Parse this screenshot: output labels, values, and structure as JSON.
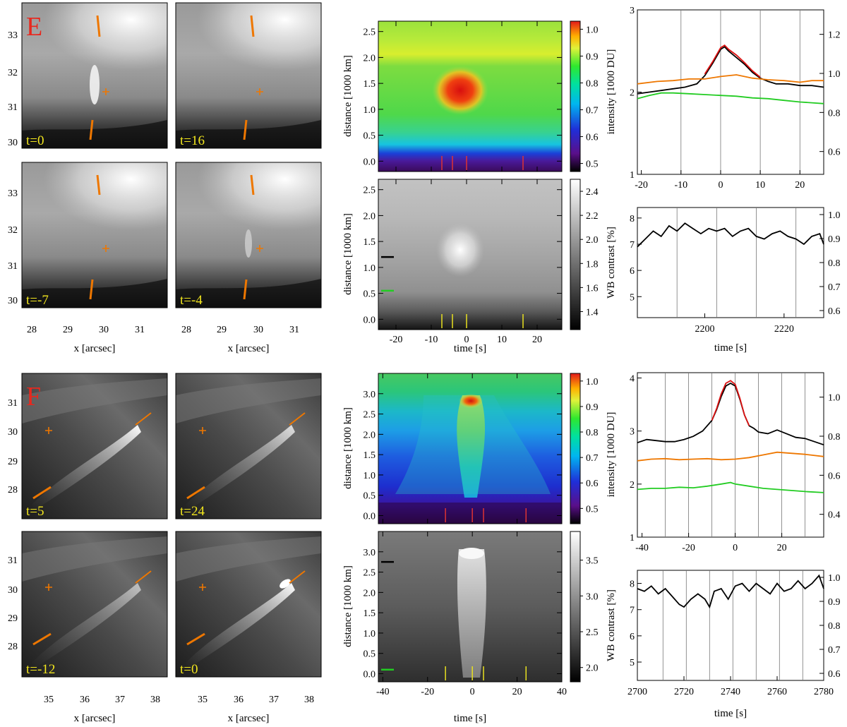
{
  "figure": {
    "sections": [
      {
        "label": "E",
        "label_color": "#e8281e",
        "image_panels": [
          {
            "time_label": "t=0"
          },
          {
            "time_label": "t=16"
          },
          {
            "time_label": "t=-7"
          },
          {
            "time_label": "t=-4"
          }
        ],
        "image_y_ticks": [
          "30",
          "31",
          "32",
          "33"
        ],
        "image_x_ticks": [
          "28",
          "29",
          "30",
          "31"
        ],
        "image_xlabel": "x [arcsec]",
        "map_ylabel": "distance [1000 km]",
        "map_y_ticks": [
          "0.0",
          "0.5",
          "1.0",
          "1.5",
          "2.0",
          "2.5"
        ],
        "map_xlabel": "time [s]",
        "map_x_ticks": [
          "-20",
          "-10",
          "0",
          "10",
          "20"
        ],
        "color_colorbar_ticks": [
          "0.5",
          "0.6",
          "0.7",
          "0.8",
          "0.9",
          "1.0"
        ],
        "gray_colorbar_ticks": [
          "1.4",
          "1.6",
          "1.8",
          "2.0",
          "2.2",
          "2.4"
        ],
        "intensity_ylabel": "intensity [1000 DU]",
        "intensity_left_ticks": [
          "1",
          "2",
          "3"
        ],
        "intensity_right_ticks": [
          "0.6",
          "0.8",
          "1.0",
          "1.2"
        ],
        "intensity_top_ticks": [
          "-20",
          "-10",
          "0",
          "10",
          "20"
        ],
        "contrast_ylabel": "WB contrast [%]",
        "contrast_left_ticks": [
          "5",
          "6",
          "7",
          "8"
        ],
        "contrast_right_ticks": [
          "0.6",
          "0.7",
          "0.8",
          "0.9",
          "1.0"
        ],
        "contrast_xlabel": "time [s]",
        "contrast_x_ticks": [
          "2200",
          "2220"
        ]
      },
      {
        "label": "F",
        "label_color": "#e8281e",
        "image_panels": [
          {
            "time_label": "t=5"
          },
          {
            "time_label": "t=24"
          },
          {
            "time_label": "t=-12"
          },
          {
            "time_label": "t=0"
          }
        ],
        "image_y_ticks": [
          "28",
          "29",
          "30",
          "31"
        ],
        "image_x_ticks": [
          "35",
          "36",
          "37",
          "38"
        ],
        "image_xlabel": "x [arcsec]",
        "map_ylabel": "distance [1000 km]",
        "map_y_ticks": [
          "0.0",
          "0.5",
          "1.0",
          "1.5",
          "2.0",
          "2.5",
          "3.0"
        ],
        "map_xlabel": "time [s]",
        "map_x_ticks": [
          "-40",
          "-20",
          "0",
          "20",
          "40"
        ],
        "color_colorbar_ticks": [
          "0.5",
          "0.6",
          "0.7",
          "0.8",
          "0.9",
          "1.0"
        ],
        "gray_colorbar_ticks": [
          "2.0",
          "2.5",
          "3.0",
          "3.5"
        ],
        "intensity_ylabel": "intensity [1000 DU]",
        "intensity_left_ticks": [
          "1",
          "2",
          "3",
          "4"
        ],
        "intensity_right_ticks": [
          "0.4",
          "0.6",
          "0.8",
          "1.0"
        ],
        "intensity_top_ticks": [
          "-40",
          "-20",
          "0",
          "20"
        ],
        "contrast_ylabel": "WB contrast [%]",
        "contrast_left_ticks": [
          "5",
          "6",
          "7",
          "8"
        ],
        "contrast_right_ticks": [
          "0.6",
          "0.7",
          "0.8",
          "0.9",
          "1.0"
        ],
        "contrast_xlabel": "time [s]",
        "contrast_x_ticks": [
          "2700",
          "2720",
          "2740",
          "2760",
          "2780"
        ]
      }
    ]
  },
  "chart_data": [
    {
      "type": "heatmap",
      "panel": "E time-distance (colour)",
      "xlabel": "time [s]",
      "ylabel": "distance [1000 km]",
      "xlim": [
        -25,
        27
      ],
      "ylim": [
        -0.2,
        2.7
      ],
      "clim": [
        0.47,
        1.03
      ],
      "colorbar_ticks": [
        0.5,
        0.6,
        0.7,
        0.8,
        0.9,
        1.0
      ],
      "peak": {
        "time": 0,
        "distance": 1.2,
        "value": 1.0
      },
      "event_markers_s": [
        -7,
        -4,
        0,
        16
      ]
    },
    {
      "type": "heatmap",
      "panel": "E time-distance (gray)",
      "xlabel": "time [s]",
      "ylabel": "distance [1000 km]",
      "xlim": [
        -25,
        27
      ],
      "ylim": [
        -0.2,
        2.7
      ],
      "clim": [
        1.25,
        2.5
      ],
      "colorbar_ticks": [
        1.4,
        1.6,
        1.8,
        2.0,
        2.2,
        2.4
      ],
      "event_markers_s": [
        -7,
        -4,
        0,
        16
      ],
      "row_markers": [
        {
          "distance": 1.2,
          "color": "#000000"
        },
        {
          "distance": 0.55,
          "color": "#22cc22"
        }
      ]
    },
    {
      "type": "line",
      "panel": "E intensity",
      "ylabel": "intensity [1000 DU]",
      "xlim": [
        -21,
        26
      ],
      "ylim": [
        1,
        3
      ],
      "vertical_lines": [
        -10,
        0,
        10,
        20
      ],
      "series": [
        {
          "color": "#000000",
          "x": [
            -21,
            -18,
            -15,
            -12,
            -9,
            -6,
            -4,
            -2,
            0,
            1,
            2,
            4,
            6,
            8,
            10,
            12,
            14,
            17,
            20,
            23,
            26
          ],
          "y": [
            1.98,
            2.0,
            2.02,
            2.04,
            2.06,
            2.1,
            2.2,
            2.35,
            2.52,
            2.55,
            2.5,
            2.42,
            2.34,
            2.24,
            2.17,
            2.13,
            2.1,
            2.1,
            2.08,
            2.08,
            2.06
          ]
        },
        {
          "color": "#dd1111",
          "x": [
            -4,
            -2,
            0,
            1,
            2,
            4,
            6,
            8,
            10
          ],
          "y": [
            2.22,
            2.37,
            2.54,
            2.57,
            2.52,
            2.45,
            2.36,
            2.26,
            2.18
          ]
        },
        {
          "color": "#ee7700",
          "x": [
            -21,
            -16,
            -12,
            -8,
            -4,
            0,
            4,
            8,
            12,
            16,
            20,
            23,
            26
          ],
          "y": [
            2.1,
            2.13,
            2.14,
            2.16,
            2.16,
            2.19,
            2.21,
            2.17,
            2.15,
            2.14,
            2.12,
            2.14,
            2.14
          ]
        },
        {
          "color": "#22cc22",
          "x": [
            -21,
            -18,
            -15,
            -12,
            -8,
            -4,
            0,
            4,
            8,
            12,
            16,
            20,
            23,
            26
          ],
          "y": [
            1.92,
            1.96,
            1.99,
            1.99,
            1.98,
            1.97,
            1.96,
            1.95,
            1.93,
            1.92,
            1.9,
            1.88,
            1.87,
            1.86
          ]
        }
      ]
    },
    {
      "type": "line",
      "panel": "E WB contrast",
      "xlabel": "time [s]",
      "ylabel": "WB contrast [%]",
      "xlim": [
        2183,
        2230
      ],
      "ylim": [
        4.2,
        8.4
      ],
      "vertical_lines": [
        2193,
        2203,
        2213,
        2223
      ],
      "series": [
        {
          "color": "#000000",
          "x": [
            2183,
            2185,
            2187,
            2189,
            2191,
            2193,
            2195,
            2197,
            2199,
            2201,
            2203,
            2205,
            2207,
            2209,
            2211,
            2213,
            2215,
            2217,
            2219,
            2221,
            2223,
            2225,
            2227,
            2229,
            2230
          ],
          "y": [
            6.9,
            7.2,
            7.5,
            7.3,
            7.7,
            7.5,
            7.8,
            7.6,
            7.4,
            7.6,
            7.5,
            7.6,
            7.3,
            7.5,
            7.6,
            7.3,
            7.2,
            7.4,
            7.5,
            7.3,
            7.2,
            7.0,
            7.3,
            7.4,
            7.0
          ]
        }
      ]
    },
    {
      "type": "heatmap",
      "panel": "F time-distance (colour)",
      "xlabel": "time [s]",
      "ylabel": "distance [1000 km]",
      "xlim": [
        -42,
        40
      ],
      "ylim": [
        -0.2,
        3.5
      ],
      "clim": [
        0.44,
        1.03
      ],
      "colorbar_ticks": [
        0.5,
        0.6,
        0.7,
        0.8,
        0.9,
        1.0
      ],
      "peak": {
        "time": 0,
        "distance": 2.85,
        "value": 1.0
      },
      "event_markers_s": [
        -12,
        0,
        5,
        24
      ]
    },
    {
      "type": "heatmap",
      "panel": "F time-distance (gray)",
      "xlabel": "time [s]",
      "ylabel": "distance [1000 km]",
      "xlim": [
        -42,
        40
      ],
      "ylim": [
        -0.2,
        3.5
      ],
      "clim": [
        1.8,
        3.9
      ],
      "colorbar_ticks": [
        2.0,
        2.5,
        3.0,
        3.5
      ],
      "event_markers_s": [
        -12,
        0,
        5,
        24
      ],
      "row_markers": [
        {
          "distance": 2.75,
          "color": "#000000"
        },
        {
          "distance": 0.1,
          "color": "#22cc22"
        }
      ]
    },
    {
      "type": "line",
      "panel": "F intensity",
      "ylabel": "intensity [1000 DU]",
      "xlim": [
        -42,
        38
      ],
      "ylim": [
        1,
        4.1
      ],
      "vertical_lines": [
        -30,
        -20,
        -10,
        0,
        10,
        20,
        30
      ],
      "series": [
        {
          "color": "#000000",
          "x": [
            -42,
            -38,
            -34,
            -30,
            -26,
            -22,
            -18,
            -14,
            -10,
            -8,
            -6,
            -4,
            -2,
            0,
            2,
            4,
            6,
            8,
            10,
            14,
            18,
            22,
            26,
            30,
            34,
            38
          ],
          "y": [
            2.78,
            2.84,
            2.82,
            2.8,
            2.8,
            2.84,
            2.9,
            3.0,
            3.2,
            3.4,
            3.65,
            3.85,
            3.9,
            3.85,
            3.6,
            3.3,
            3.1,
            3.05,
            2.98,
            2.95,
            3.02,
            2.95,
            2.88,
            2.86,
            2.8,
            2.74
          ]
        },
        {
          "color": "#dd1111",
          "x": [
            -10,
            -8,
            -6,
            -4,
            -2,
            0,
            2,
            4,
            6
          ],
          "y": [
            3.2,
            3.42,
            3.7,
            3.9,
            3.95,
            3.88,
            3.62,
            3.3,
            3.1
          ]
        },
        {
          "color": "#ee7700",
          "x": [
            -42,
            -36,
            -30,
            -24,
            -18,
            -12,
            -6,
            0,
            6,
            12,
            18,
            24,
            30,
            38
          ],
          "y": [
            2.44,
            2.47,
            2.48,
            2.46,
            2.47,
            2.48,
            2.46,
            2.47,
            2.5,
            2.55,
            2.6,
            2.58,
            2.56,
            2.52
          ]
        },
        {
          "color": "#22cc22",
          "x": [
            -42,
            -36,
            -30,
            -24,
            -18,
            -12,
            -6,
            -2,
            0,
            6,
            12,
            18,
            24,
            30,
            38
          ],
          "y": [
            1.9,
            1.92,
            1.92,
            1.94,
            1.93,
            1.96,
            2.0,
            2.03,
            2.0,
            1.96,
            1.92,
            1.9,
            1.88,
            1.86,
            1.84
          ]
        }
      ]
    },
    {
      "type": "line",
      "panel": "F WB contrast",
      "xlabel": "time [s]",
      "ylabel": "WB contrast [%]",
      "xlim": [
        2700,
        2780
      ],
      "ylim": [
        4.3,
        8.5
      ],
      "vertical_lines": [
        2711,
        2721,
        2731,
        2741,
        2751,
        2761,
        2771
      ],
      "series": [
        {
          "color": "#000000",
          "x": [
            2700,
            2703,
            2706,
            2709,
            2712,
            2715,
            2718,
            2720,
            2723,
            2726,
            2729,
            2731,
            2733,
            2736,
            2739,
            2742,
            2745,
            2748,
            2751,
            2754,
            2757,
            2760,
            2763,
            2766,
            2769,
            2772,
            2775,
            2778,
            2780
          ],
          "y": [
            7.8,
            7.7,
            7.9,
            7.6,
            7.8,
            7.5,
            7.2,
            7.1,
            7.4,
            7.6,
            7.4,
            7.1,
            7.7,
            7.8,
            7.4,
            7.9,
            8.0,
            7.7,
            8.0,
            7.8,
            7.6,
            8.0,
            7.7,
            7.8,
            8.1,
            7.8,
            8.0,
            8.3,
            7.8
          ]
        }
      ]
    }
  ]
}
